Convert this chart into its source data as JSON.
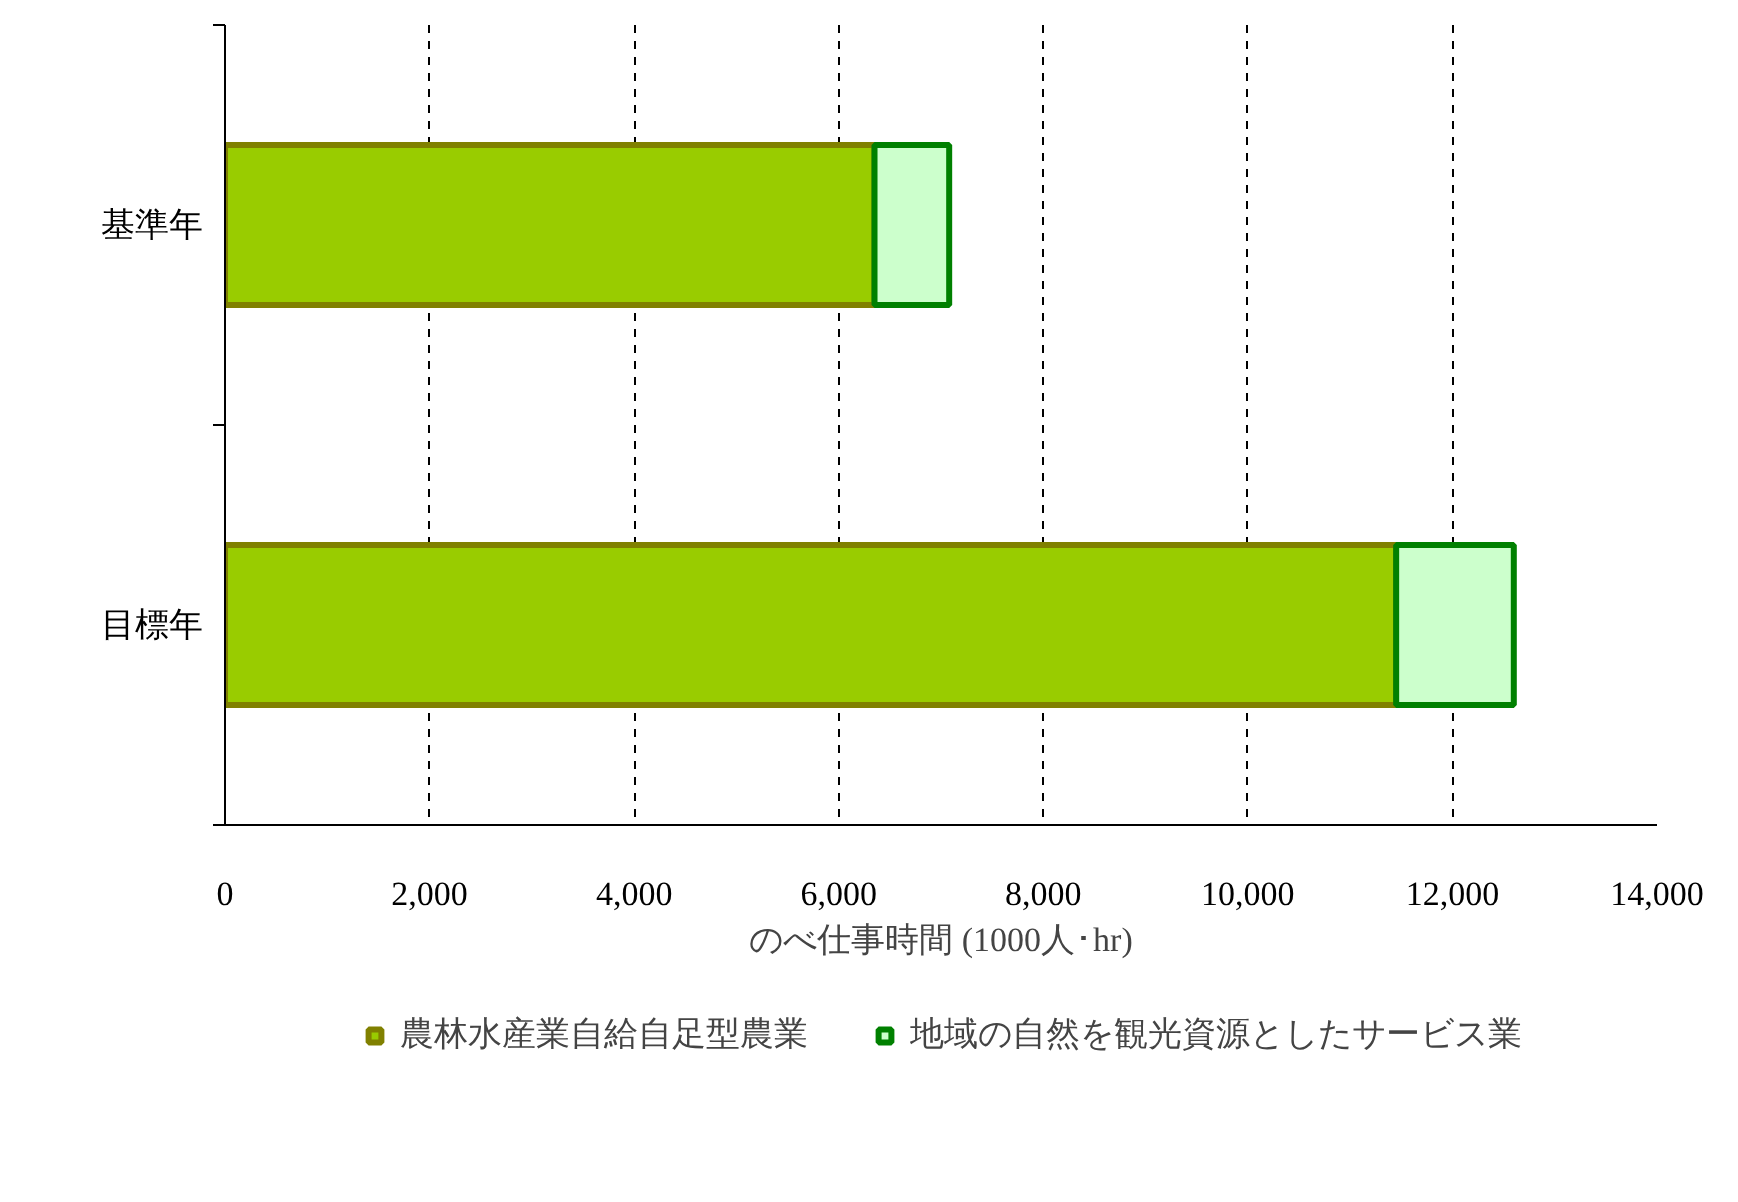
{
  "chart_data": {
    "type": "bar",
    "orientation": "horizontal",
    "stacked": true,
    "categories": [
      "基準年",
      "目標年"
    ],
    "xlabel": "のべ仕事時間 (1000人･hr)",
    "series": [
      {
        "name": "農林水産業自給自足型農業",
        "color": "#99cc00",
        "values": [
          6350,
          11450
        ]
      },
      {
        "name": "地域の自然を観光資源としたサービス業",
        "color": "#ccffcc",
        "values": [
          730,
          1150
        ]
      }
    ],
    "xlim": [
      0,
      14000
    ],
    "xticks": [
      0,
      {
        "value": 2000,
        "label": "2,000"
      },
      {
        "value": 4000,
        "label": "4,000"
      },
      {
        "value": 6000,
        "label": "6,000"
      },
      {
        "value": 8000,
        "label": "8,000"
      },
      {
        "value": 10000,
        "label": "10,000"
      },
      {
        "value": 12000,
        "label": "12,000"
      },
      {
        "value": 14000,
        "label": "14,000"
      }
    ],
    "grid": "x",
    "legend": "bottom"
  }
}
